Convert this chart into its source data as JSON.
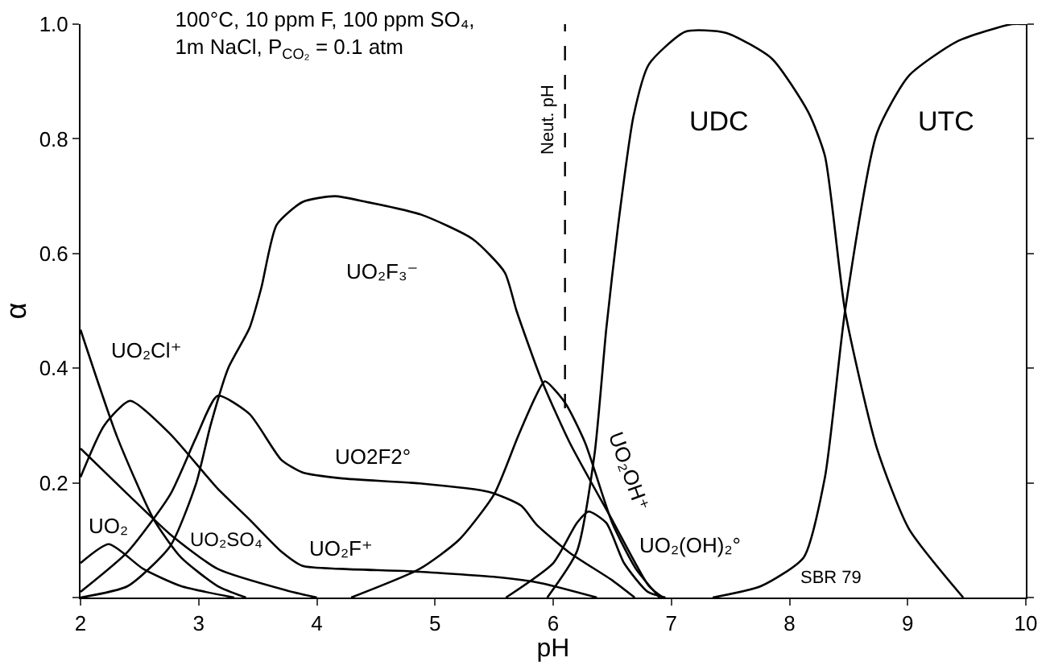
{
  "chart_data": {
    "type": "line",
    "title": "100°C, 10 ppm F, 100 ppm SO₄,\n1m NaCl, P$_{CO₂}$ = 0.1 atm",
    "xlabel": "pH",
    "ylabel": "α",
    "xlim": [
      2,
      10
    ],
    "ylim": [
      0,
      1.0
    ],
    "xticks": [
      2,
      3,
      4,
      5,
      6,
      7,
      8,
      9,
      10
    ],
    "yticks": [
      {
        "value": 0,
        "label": null
      },
      0.2,
      0.4,
      0.6,
      0.8,
      {
        "value": 1,
        "label": "1.0"
      }
    ],
    "grid": false,
    "marker": "none",
    "line_style": "solid",
    "series": [
      {
        "color": "#000000",
        "x": [
          2,
          2.31,
          2.62,
          2.85,
          3.16,
          3.4
        ],
        "values": [
          0.467,
          0.28,
          0.136,
          0.07,
          0.02,
          0
        ]
      },
      {
        "color": "#000000",
        "x": [
          2,
          2.4,
          2.76,
          3.16,
          3.75,
          4
        ],
        "values": [
          0.26,
          0.18,
          0.11,
          0.05,
          0.012,
          0
        ]
      },
      {
        "color": "#000000",
        "x": [
          2,
          2.2,
          2.42,
          2.76,
          3.16,
          3.43,
          3.7,
          3.88,
          4.2,
          4.87,
          5.55,
          5.9,
          6.37
        ],
        "values": [
          0.21,
          0.3,
          0.343,
          0.285,
          0.19,
          0.136,
          0.08,
          0.055,
          0.05,
          0.045,
          0.035,
          0.025,
          0
        ]
      },
      {
        "color": "#000000",
        "x": [
          2,
          2.4,
          2.76,
          2.98,
          3.16,
          3.43,
          3.7,
          3.88,
          4.2,
          4.87,
          5.46,
          5.73,
          5.86,
          6.14,
          6.5,
          6.69
        ],
        "values": [
          0.01,
          0.08,
          0.18,
          0.28,
          0.352,
          0.32,
          0.24,
          0.218,
          0.208,
          0.199,
          0.184,
          0.16,
          0.127,
          0.078,
          0.03,
          0
        ]
      },
      {
        "color": "#000000",
        "x": [
          2,
          2.24,
          2.53,
          2.85,
          3.3
        ],
        "values": [
          0.06,
          0.093,
          0.05,
          0.02,
          0
        ]
      },
      {
        "color": "#000000",
        "x": [
          2,
          2.4,
          2.76,
          2.98,
          3.1,
          3.25,
          3.43,
          3.53,
          3.66,
          3.88,
          4.15,
          4.42,
          4.88,
          5.32,
          5.59,
          5.69,
          5.9,
          6.14,
          6.5,
          6.81,
          6.93
        ],
        "values": [
          0,
          0.02,
          0.09,
          0.2,
          0.3,
          0.4,
          0.47,
          0.54,
          0.65,
          0.69,
          0.7,
          0.69,
          0.668,
          0.625,
          0.567,
          0.5,
          0.38,
          0.27,
          0.135,
          0.02,
          0
        ]
      },
      {
        "color": "#000000",
        "x": [
          4.29,
          4.87,
          5.2,
          5.5,
          5.7,
          5.85,
          5.93,
          6.1,
          6.27,
          6.5,
          6.7,
          6.9
        ],
        "values": [
          0,
          0.05,
          0.1,
          0.18,
          0.28,
          0.35,
          0.377,
          0.34,
          0.27,
          0.13,
          0.05,
          0
        ]
      },
      {
        "color": "#000000",
        "x": [
          5.6,
          6,
          6.2,
          6.3,
          6.45,
          6.6,
          6.8,
          6.95
        ],
        "values": [
          0,
          0.06,
          0.13,
          0.15,
          0.13,
          0.06,
          0.01,
          0
        ]
      },
      {
        "color": "#000000",
        "x": [
          5.95,
          6.2,
          6.35,
          6.45,
          6.55,
          6.68,
          6.81,
          7.12,
          7.46,
          7.85,
          8.16,
          8.3,
          8.47,
          8.74,
          9.01,
          9.47
        ],
        "values": [
          0,
          0.08,
          0.25,
          0.47,
          0.65,
          0.84,
          0.93,
          0.987,
          0.985,
          0.94,
          0.846,
          0.77,
          0.5,
          0.26,
          0.12,
          0
        ]
      },
      {
        "color": "#000000",
        "x": [
          7.35,
          7.76,
          8.12,
          8.3,
          8.47,
          8.74,
          9.01,
          9.42,
          9.88,
          10
        ],
        "values": [
          0,
          0.02,
          0.07,
          0.21,
          0.5,
          0.81,
          0.91,
          0.97,
          1.0,
          1.0
        ]
      }
    ],
    "ref_lines": [
      {
        "axis": "x",
        "value": 6.1,
        "label": "Neut. pH",
        "line_style": "dashed",
        "color": "#000000"
      }
    ],
    "annotations": [
      "UO₂F₃⁻",
      "UO₂Cl⁺",
      "UO₂",
      "UO₂SO₄",
      "UO₂F⁺",
      "UO2F2°",
      "UO₂OH⁺",
      "UO₂(OH)₂°",
      "UDC",
      "UTC",
      "SBR 79"
    ]
  }
}
